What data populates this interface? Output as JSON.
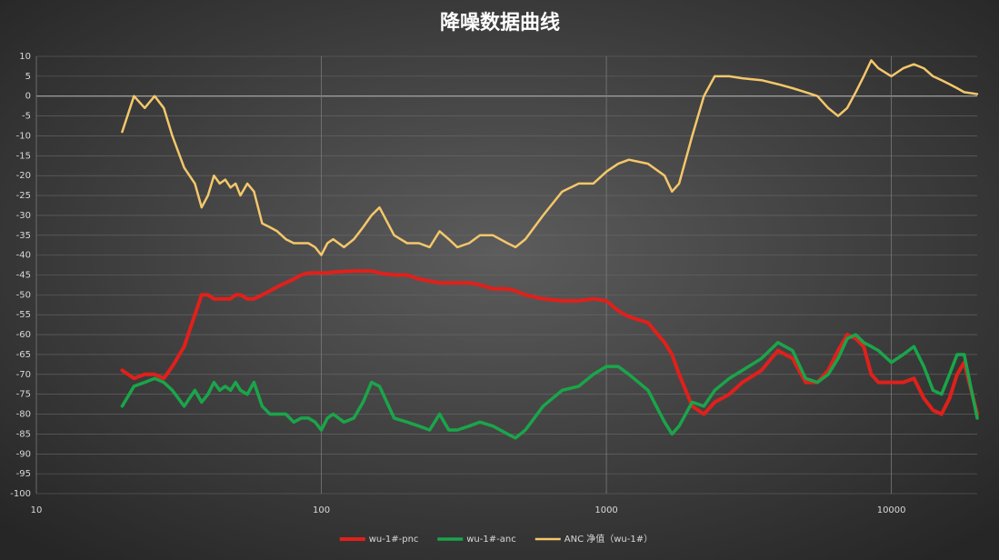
{
  "chart_data": {
    "type": "line",
    "title": "降噪数据曲线",
    "xscale": "log",
    "xlim": [
      10,
      20000
    ],
    "xticks": [
      10,
      100,
      1000,
      10000
    ],
    "ylim": [
      -100,
      10
    ],
    "yticks": [
      10,
      5,
      0,
      -5,
      -10,
      -15,
      -20,
      -25,
      -30,
      -35,
      -40,
      -45,
      -50,
      -55,
      -60,
      -65,
      -70,
      -75,
      -80,
      -85,
      -90,
      -95,
      -100
    ],
    "grid": true,
    "legend": "bottom",
    "x": [
      20,
      22,
      24,
      26,
      28,
      30,
      33,
      36,
      38,
      40,
      42,
      44,
      46,
      48,
      50,
      52,
      55,
      58,
      62,
      66,
      70,
      75,
      80,
      85,
      90,
      95,
      100,
      105,
      110,
      120,
      130,
      140,
      150,
      160,
      180,
      200,
      220,
      240,
      260,
      280,
      300,
      330,
      360,
      400,
      450,
      480,
      520,
      600,
      700,
      800,
      900,
      1000,
      1100,
      1200,
      1400,
      1600,
      1700,
      1800,
      2000,
      2200,
      2400,
      2700,
      3000,
      3500,
      4000,
      4500,
      5000,
      5500,
      6000,
      6500,
      7000,
      7500,
      8000,
      8500,
      9000,
      10000,
      11000,
      12000,
      13000,
      14000,
      15000,
      16000,
      17000,
      18000,
      20000
    ],
    "series": [
      {
        "name": "wu-1#-pnc",
        "color": "#e0201b",
        "width": 4,
        "values": [
          -69,
          -71,
          -70,
          -70,
          -71,
          -68,
          -63,
          -55,
          -50,
          -50,
          -51,
          -51,
          -51,
          -51,
          -50,
          -50,
          -51,
          -51,
          -50,
          -49,
          -48,
          -47,
          -46,
          -45,
          -44.5,
          -44.5,
          -44.5,
          -44.5,
          -44.3,
          -44.1,
          -44,
          -44,
          -44,
          -44.5,
          -45,
          -45,
          -46,
          -46.5,
          -47,
          -47,
          -47,
          -47,
          -47.5,
          -48.5,
          -48.5,
          -49,
          -50,
          -51,
          -51.5,
          -51.5,
          -51,
          -51.5,
          -54,
          -55.5,
          -57,
          -62,
          -65,
          -70,
          -78,
          -80,
          -77,
          -75,
          -72,
          -69,
          -64,
          -66,
          -72,
          -72,
          -69,
          -64,
          -60,
          -61,
          -63,
          -70,
          -72,
          -72,
          -72,
          -71,
          -76,
          -79,
          -80,
          -76,
          -70,
          -67,
          -80
        ]
      },
      {
        "name": "wu-1#-anc",
        "color": "#1aa54a",
        "width": 3.5,
        "values": [
          -78,
          -73,
          -72,
          -71,
          -72,
          -74,
          -78,
          -74,
          -77,
          -75,
          -72,
          -74,
          -73,
          -74,
          -72,
          -74,
          -75,
          -72,
          -78,
          -80,
          -80,
          -80,
          -82,
          -81,
          -81,
          -82,
          -84,
          -81,
          -80,
          -82,
          -81,
          -77,
          -72,
          -73,
          -81,
          -82,
          -83,
          -84,
          -80,
          -84,
          -84,
          -83,
          -82,
          -83,
          -85,
          -86,
          -84,
          -78,
          -74,
          -73,
          -70,
          -68,
          -68,
          -70,
          -74,
          -82,
          -85,
          -83,
          -77,
          -78,
          -74,
          -71,
          -69,
          -66,
          -62,
          -64,
          -71,
          -72,
          -70,
          -66,
          -61,
          -60,
          -62,
          -63,
          -64,
          -67,
          -65,
          -63,
          -68,
          -74,
          -75,
          -70,
          -65,
          -65,
          -81
        ]
      },
      {
        "name": "ANC 净值（wu-1#）",
        "color": "#f4c76a",
        "width": 2.5,
        "values": [
          -9,
          0,
          -3,
          0,
          -3,
          -10,
          -18,
          -22,
          -28,
          -25,
          -20,
          -22,
          -21,
          -23,
          -22,
          -25,
          -22,
          -24,
          -32,
          -33,
          -34,
          -36,
          -37,
          -37,
          -37,
          -38,
          -40,
          -37,
          -36,
          -38,
          -36,
          -33,
          -30,
          -28,
          -35,
          -37,
          -37,
          -38,
          -34,
          -36,
          -38,
          -37,
          -35,
          -35,
          -37,
          -38,
          -36,
          -30,
          -24,
          -22,
          -22,
          -19,
          -17,
          -16,
          -17,
          -20,
          -24,
          -22,
          -10,
          0,
          5,
          5,
          4.5,
          4,
          3,
          2,
          1,
          0,
          -3,
          -5,
          -3,
          1,
          5,
          9,
          7,
          5,
          7,
          8,
          7,
          5,
          4,
          3,
          2,
          1,
          0.5
        ]
      }
    ]
  }
}
